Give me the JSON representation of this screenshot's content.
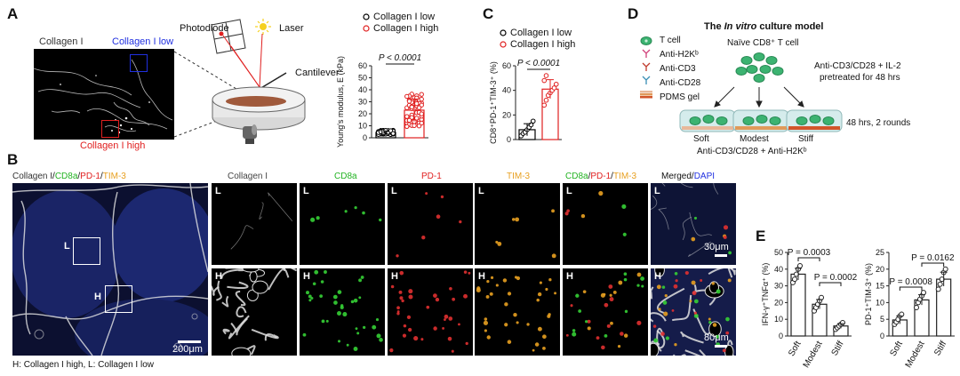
{
  "panels": {
    "A": "A",
    "B": "B",
    "C": "C",
    "D": "D",
    "E": "E"
  },
  "panelA": {
    "image_title": "Collagen I",
    "roi_low": "Collagen I low",
    "roi_high": "Collagen I high",
    "photodiode": "Photodiode",
    "laser": "Laser",
    "cantilever": "Cantilever"
  },
  "panelB": {
    "overview_title": {
      "p1": "Collagen I",
      "p2": "CD8a",
      "p3": "PD-1",
      "p4": "TIM-3",
      "sep": "/"
    },
    "roi_L": "L",
    "roi_H": "H",
    "overview_scale": "200μm",
    "channels": [
      {
        "text": "Collagen I",
        "color": "#444444"
      },
      {
        "text": "CD8a",
        "color": "#22b322"
      },
      {
        "text": "PD-1",
        "color": "#e02020"
      },
      {
        "text": "TIM-3",
        "color": "#e8a020"
      },
      {
        "p1": "CD8a",
        "p2": "PD-1",
        "p3": "TIM-3",
        "sep": "/"
      },
      {
        "p1": "Merged",
        "p2": "DAPI",
        "sep": "/"
      }
    ],
    "row_labels": {
      "low": "L",
      "high": "H"
    },
    "scale_low": "30μm",
    "scale_high": "80μm",
    "footnote": "H: Collagen I high, L: Collagen I low"
  },
  "panelD": {
    "title_pre": "The ",
    "title_em": "In vitro",
    "title_post": " culture model",
    "legend": [
      "T cell",
      "Anti-H2Kᵇ",
      "Anti-CD3",
      "Anti-CD28",
      "PDMS gel"
    ],
    "naive": "Naïve CD8⁺ T cell",
    "pretreat_line1": "Anti-CD3/CD28 + IL-2",
    "pretreat_line2": "pretreated for 48 hrs",
    "duration": "48 hrs, 2 rounds",
    "conditions": [
      "Soft",
      "Modest",
      "Stiff"
    ],
    "bottom": "Anti-CD3/CD28 + Anti-H2Kᵇ",
    "colors": {
      "tcell": "#3cb371",
      "h2kb": "#d0407a",
      "cd3": "#c0392b",
      "cd28": "#3a8fb5",
      "gel_soft": "#e8b89a",
      "gel_modest": "#e09a5a",
      "gel_stiff": "#d2552a",
      "well": "#d5ecec"
    }
  },
  "chart_data": [
    {
      "type": "bar",
      "panel": "A",
      "categories": [
        "Collagen I low",
        "Collagen I high"
      ],
      "values": [
        4.5,
        23
      ],
      "ylabel": "Young's modulus, E (kPa)",
      "ylim": [
        0,
        60
      ],
      "yticks": [
        0,
        10,
        20,
        30,
        40,
        50,
        60
      ],
      "annotation": "P < 0.0001",
      "legend": [
        "Collagen I low",
        "Collagen I high"
      ],
      "colors": [
        "#000000",
        "#e02020"
      ]
    },
    {
      "type": "bar",
      "panel": "C",
      "categories": [
        "Collagen I low",
        "Collagen I high"
      ],
      "values": [
        8,
        41
      ],
      "points": [
        [
          3,
          5,
          6,
          8,
          10,
          12,
          15
        ],
        [
          28,
          32,
          36,
          38,
          40,
          42,
          45,
          48,
          52
        ]
      ],
      "ylabel": "CD8⁺PD-1⁺TIM-3⁺ (%)",
      "ylim": [
        0,
        60
      ],
      "yticks": [
        0,
        20,
        40,
        60
      ],
      "annotation": "P < 0.0001",
      "legend": [
        "Collagen I low",
        "Collagen I high"
      ],
      "colors": [
        "#000000",
        "#e02020"
      ]
    },
    {
      "type": "bar",
      "panel": "E",
      "categories": [
        "Soft",
        "Modest",
        "Stiff"
      ],
      "values": [
        37,
        19,
        6
      ],
      "points": [
        [
          32,
          34,
          37,
          40,
          42
        ],
        [
          15,
          17,
          19,
          21,
          23
        ],
        [
          4,
          5,
          6,
          7,
          8
        ]
      ],
      "ylabel": "IFN-γ⁺TNFα⁺ (%)",
      "ylim": [
        0,
        50
      ],
      "yticks": [
        0,
        10,
        20,
        30,
        40,
        50
      ],
      "annotations": [
        {
          "text": "P = 0.0003",
          "pair": [
            0,
            1
          ]
        },
        {
          "text": "P = 0.0002",
          "pair": [
            1,
            2
          ]
        }
      ]
    },
    {
      "type": "bar",
      "panel": "E",
      "categories": [
        "Soft",
        "Modest",
        "Stiff"
      ],
      "values": [
        4.8,
        10.8,
        17
      ],
      "points": [
        [
          3.5,
          4.2,
          5,
          6,
          6.5
        ],
        [
          8.5,
          10,
          11,
          12,
          13
        ],
        [
          14,
          15.5,
          17,
          19,
          20
        ]
      ],
      "ylabel": "PD-1⁺TIM-3⁺ (%)",
      "ylim": [
        0,
        25
      ],
      "yticks": [
        0,
        5,
        10,
        15,
        20,
        25
      ],
      "annotations": [
        {
          "text": "P = 0.0008",
          "pair": [
            0,
            1
          ]
        },
        {
          "text": "P = 0.0162",
          "pair": [
            1,
            2
          ]
        }
      ]
    }
  ]
}
